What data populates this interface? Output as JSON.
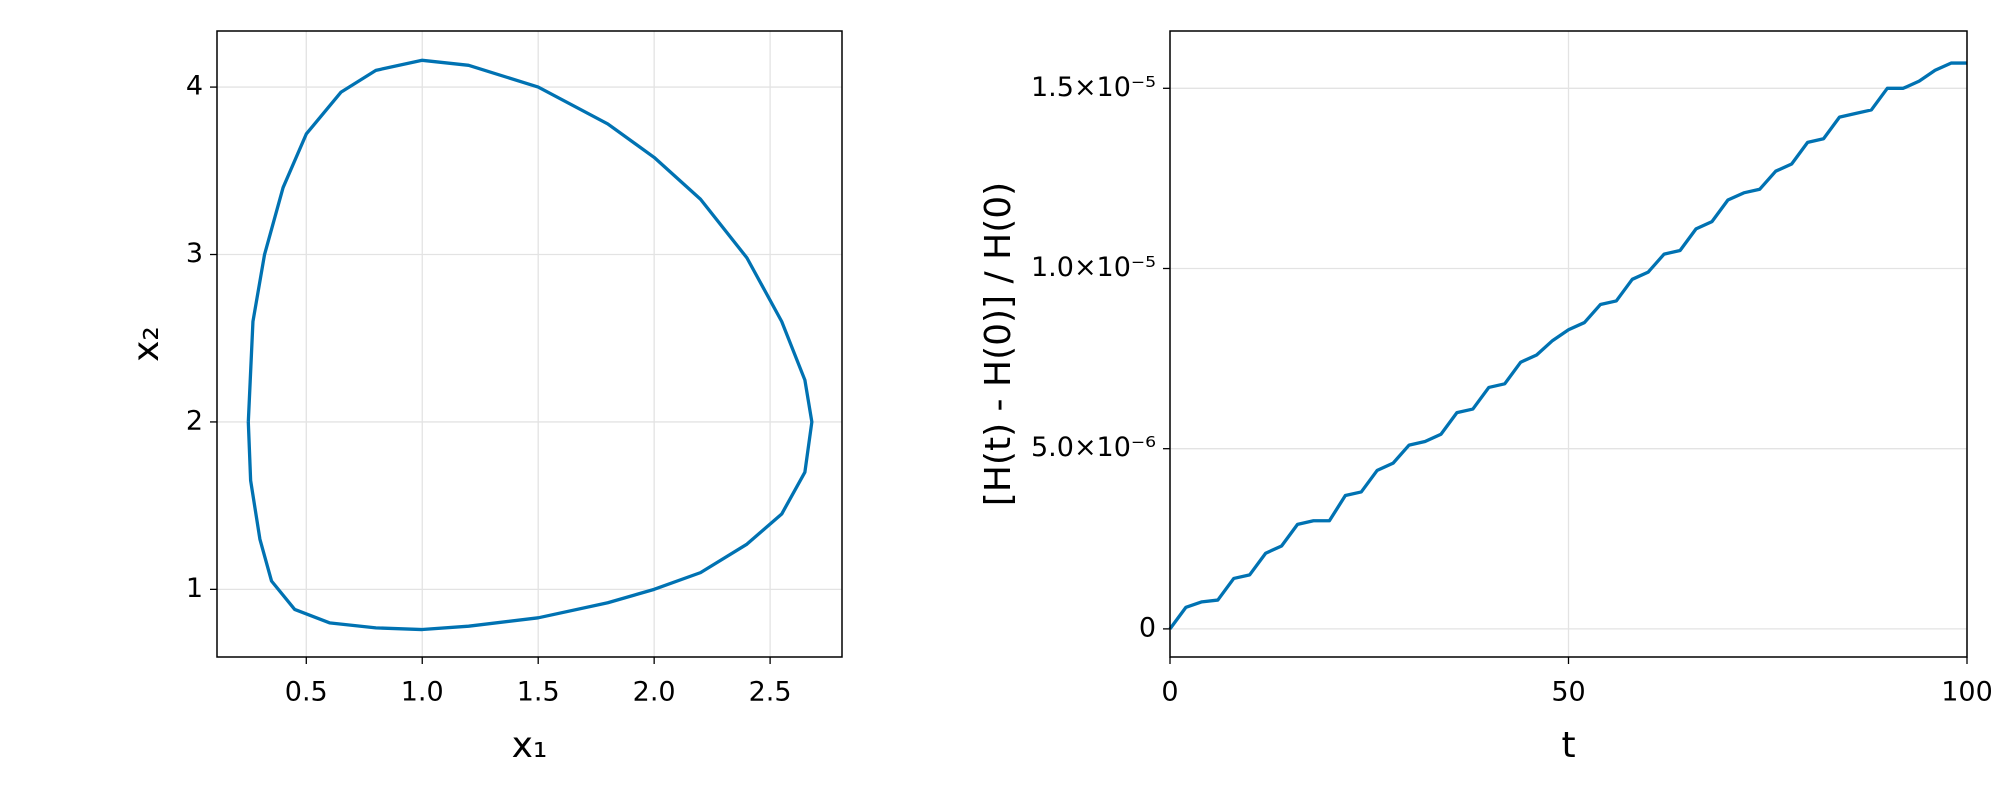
{
  "chart_data": [
    {
      "type": "line",
      "xlabel": "x₁",
      "ylabel": "x₂",
      "color": "#0072b2",
      "grid": true,
      "xlim": [
        0.115,
        2.81
      ],
      "ylim": [
        0.596,
        4.335
      ],
      "xticks": [
        0.5,
        {
          "value": 1.0,
          "label": "1.0"
        },
        1.5,
        {
          "value": 2.0,
          "label": "2.0"
        },
        2.5
      ],
      "yticks": [
        1,
        2,
        3,
        4
      ],
      "x": [
        0.25,
        0.27,
        0.32,
        0.4,
        0.5,
        0.65,
        0.8,
        1.0,
        1.2,
        1.5,
        1.8,
        2.0,
        2.2,
        2.4,
        2.55,
        2.65,
        2.68,
        2.65,
        2.55,
        2.4,
        2.2,
        2.0,
        1.8,
        1.5,
        1.2,
        1.0,
        0.8,
        0.6,
        0.45,
        0.35,
        0.3,
        0.26,
        0.25
      ],
      "values": [
        2.0,
        2.6,
        3.0,
        3.4,
        3.72,
        3.97,
        4.1,
        4.16,
        4.13,
        4.0,
        3.78,
        3.58,
        3.33,
        2.98,
        2.6,
        2.25,
        2.0,
        1.7,
        1.45,
        1.27,
        1.1,
        1.0,
        0.92,
        0.83,
        0.78,
        0.76,
        0.77,
        0.8,
        0.88,
        1.05,
        1.3,
        1.65,
        2.0
      ]
    },
    {
      "type": "line",
      "xlabel": "t",
      "ylabel": "[H(t) - H(0)] / H(0)",
      "color": "#0072b2",
      "grid": true,
      "xlim": [
        0,
        100
      ],
      "ylim": [
        -7.8e-07,
        1.659e-05
      ],
      "xticks": [
        0,
        50,
        100
      ],
      "yticks": [
        0,
        {
          "value": 5e-06,
          "label": "5.0×10⁻⁶"
        },
        {
          "value": 1e-05,
          "label": "1.0×10⁻⁵"
        },
        {
          "value": 1.5e-05,
          "label": "1.5×10⁻⁵"
        }
      ],
      "x": [
        0,
        2,
        4,
        6,
        8,
        10,
        12,
        14,
        16,
        18,
        20,
        22,
        24,
        26,
        28,
        30,
        32,
        34,
        36,
        38,
        40,
        42,
        44,
        46,
        48,
        50,
        52,
        54,
        56,
        58,
        60,
        62,
        64,
        66,
        68,
        70,
        72,
        74,
        76,
        78,
        80,
        82,
        84,
        86,
        88,
        90,
        92,
        94,
        96,
        98,
        100
      ],
      "values": [
        0,
        6e-07,
        7.5e-07,
        8e-07,
        1.4e-06,
        1.5e-06,
        2.1e-06,
        2.3e-06,
        2.9e-06,
        3e-06,
        3e-06,
        3.7e-06,
        3.8e-06,
        4.4e-06,
        4.6e-06,
        5.1e-06,
        5.2e-06,
        5.4e-06,
        6e-06,
        6.1e-06,
        6.7e-06,
        6.8e-06,
        7.4e-06,
        7.6e-06,
        8e-06,
        8.3e-06,
        8.5e-06,
        9e-06,
        9.1e-06,
        9.7e-06,
        9.9e-06,
        1.04e-05,
        1.05e-05,
        1.11e-05,
        1.13e-05,
        1.19e-05,
        1.21e-05,
        1.22e-05,
        1.27e-05,
        1.29e-05,
        1.35e-05,
        1.36e-05,
        1.42e-05,
        1.43e-05,
        1.44e-05,
        1.5e-05,
        1.5e-05,
        1.52e-05,
        1.55e-05,
        1.57e-05,
        1.57e-05
      ]
    }
  ]
}
